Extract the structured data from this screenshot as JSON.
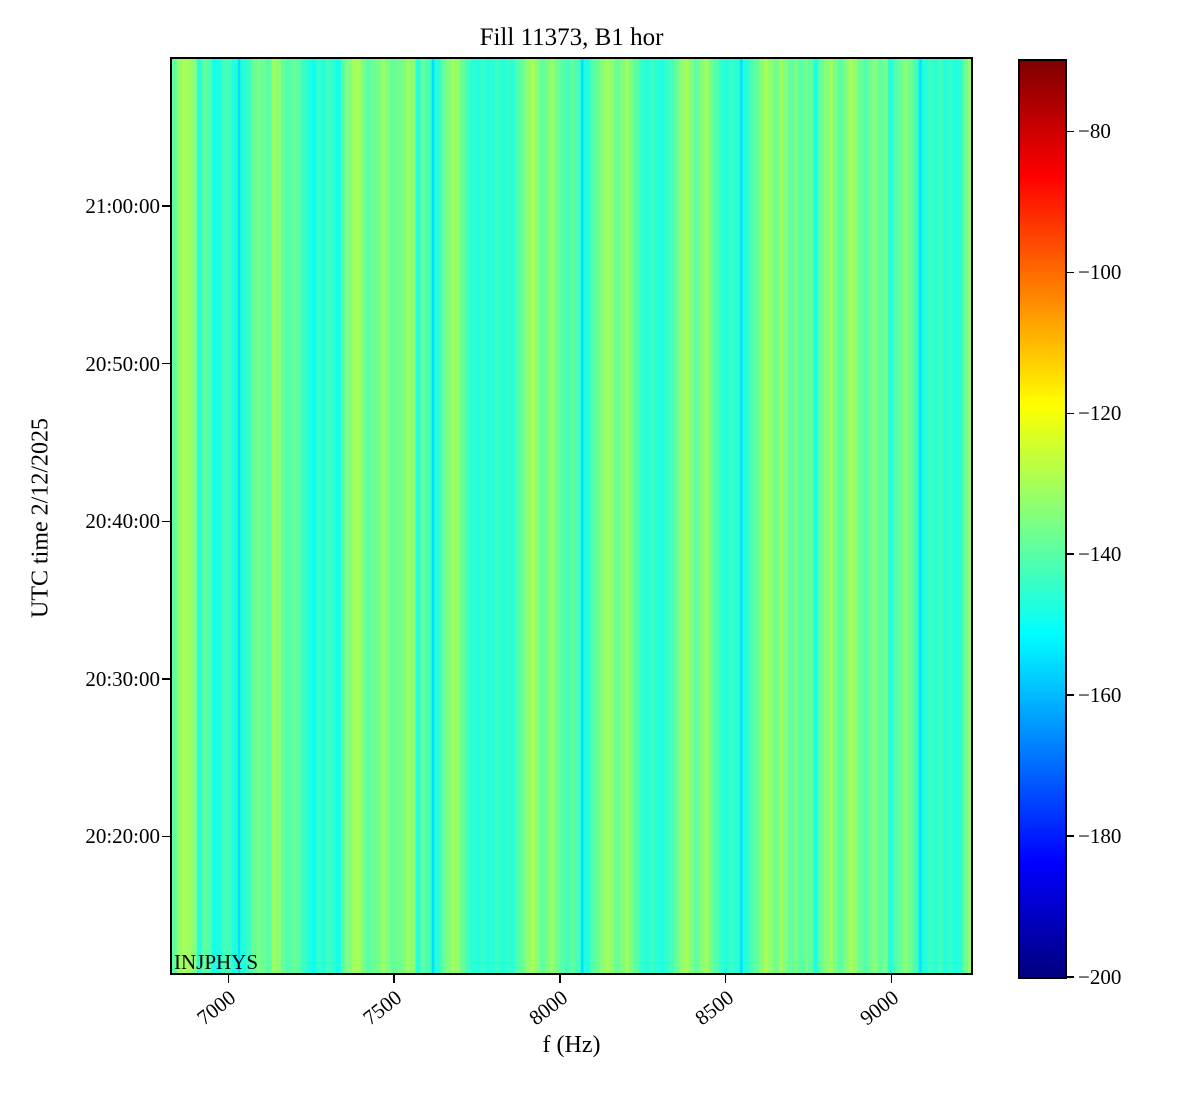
{
  "chart_data": {
    "type": "heatmap",
    "title": "Fill 11373, B1 hor",
    "xlabel": "f (Hz)",
    "ylabel": "UTC time 2/12/2025",
    "annotation": "INJPHYS",
    "colormap": "jet",
    "grid": false,
    "x_range_hz": [
      6830,
      9240
    ],
    "x_ticks_hz": [
      7000,
      7500,
      8000,
      8500,
      9000
    ],
    "y_time_range": [
      "20:11:20",
      "21:09:20"
    ],
    "y_ticks_time": [
      "20:20:00",
      "20:30:00",
      "20:40:00",
      "20:50:00",
      "21:00:00"
    ],
    "colorbar": {
      "vmin": -200,
      "vmax": -70,
      "ticks_db": [
        -80,
        -100,
        -120,
        -140,
        -160,
        -180,
        -200
      ],
      "position": "right"
    },
    "spectrum_db_vs_f": {
      "f_start_hz": 6830,
      "f_step_hz": 15,
      "values_db": [
        -139,
        -132,
        -130,
        -131,
        -134,
        -147,
        -139,
        -141,
        -149,
        -148,
        -143,
        -143,
        -148,
        -156,
        -147,
        -144,
        -138,
        -136,
        -138,
        -140,
        -131,
        -133,
        -139,
        -141,
        -138,
        -140,
        -144,
        -147,
        -150,
        -145,
        -147,
        -143,
        -146,
        -149,
        -139,
        -135,
        -131,
        -130,
        -136,
        -140,
        -138,
        -136,
        -132,
        -135,
        -139,
        -137,
        -136,
        -131,
        -133,
        -147,
        -139,
        -142,
        -156,
        -147,
        -139,
        -135,
        -131,
        -132,
        -138,
        -143,
        -146,
        -147,
        -145,
        -147,
        -146,
        -144,
        -147,
        -145,
        -146,
        -141,
        -138,
        -133,
        -130,
        -134,
        -139,
        -136,
        -132,
        -137,
        -140,
        -143,
        -139,
        -142,
        -156,
        -148,
        -141,
        -138,
        -134,
        -130,
        -133,
        -138,
        -135,
        -131,
        -136,
        -140,
        -145,
        -147,
        -144,
        -146,
        -148,
        -145,
        -143,
        -138,
        -133,
        -130,
        -135,
        -139,
        -134,
        -131,
        -137,
        -141,
        -145,
        -147,
        -144,
        -146,
        -156,
        -147,
        -142,
        -139,
        -134,
        -130,
        -133,
        -137,
        -131,
        -135,
        -139,
        -136,
        -140,
        -137,
        -139,
        -148,
        -138,
        -134,
        -131,
        -136,
        -140,
        -135,
        -130,
        -133,
        -138,
        -141,
        -137,
        -134,
        -139,
        -136,
        -147,
        -141,
        -138,
        -134,
        -137,
        -142,
        -156,
        -147,
        -144,
        -146,
        -143,
        -147,
        -145,
        -148,
        -146,
        -137,
        -133
      ]
    }
  }
}
